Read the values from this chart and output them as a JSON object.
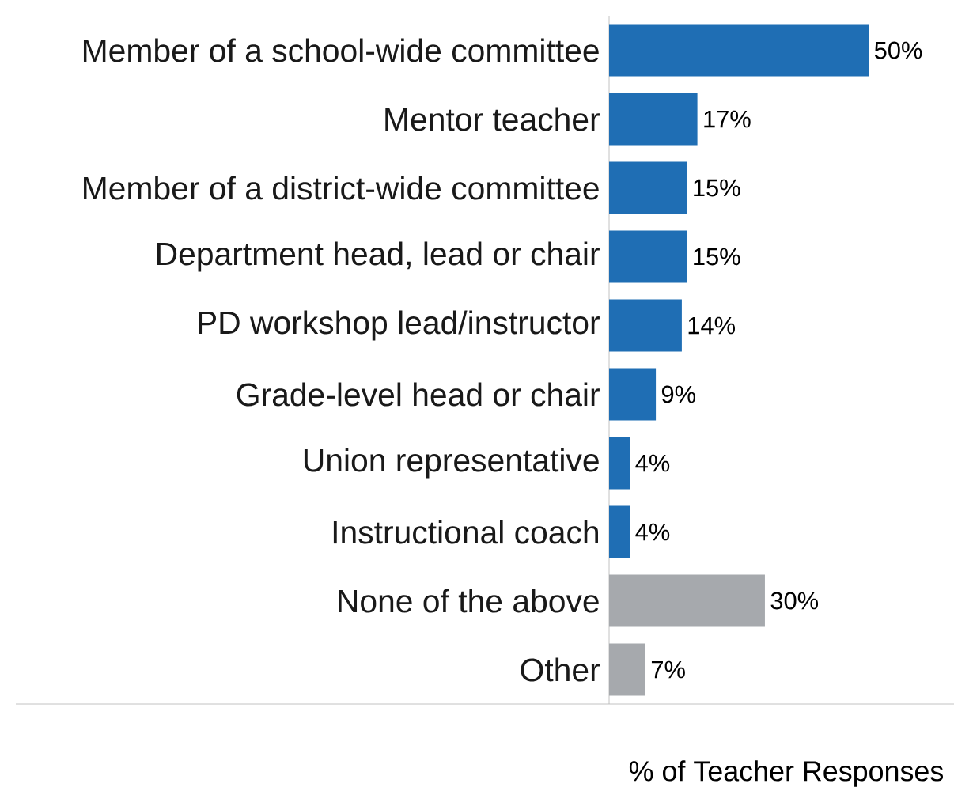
{
  "chart_data": {
    "type": "bar",
    "orientation": "horizontal",
    "categories": [
      "Member of a school-wide committee",
      "Mentor teacher",
      "Member of a district-wide committee",
      "Department head, lead or chair",
      "PD workshop lead/instructor",
      "Grade-level head or chair",
      "Union representative",
      "Instructional coach",
      "None of the above",
      "Other"
    ],
    "values": [
      50,
      17,
      15,
      15,
      14,
      9,
      4,
      4,
      30,
      7
    ],
    "value_labels": [
      "50%",
      "17%",
      "15%",
      "15%",
      "14%",
      "9%",
      "4%",
      "4%",
      "30%",
      "7%"
    ],
    "colors": [
      "#1f6eb4",
      "#1f6eb4",
      "#1f6eb4",
      "#1f6eb4",
      "#1f6eb4",
      "#1f6eb4",
      "#1f6eb4",
      "#1f6eb4",
      "#a6a9ad",
      "#a6a9ad"
    ],
    "xlabel": "% of Teacher Responses"
  }
}
